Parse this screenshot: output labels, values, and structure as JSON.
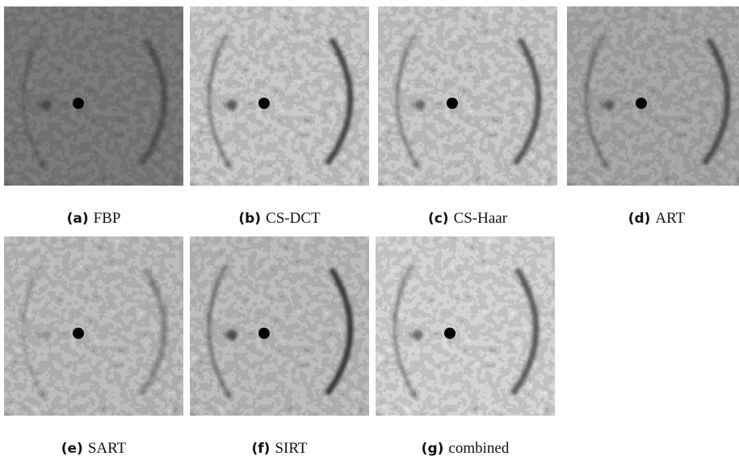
{
  "subfigures": [
    {
      "label": "(a)",
      "caption": "FBP"
    },
    {
      "label": "(b)",
      "caption": "CS-DCT"
    },
    {
      "label": "(c)",
      "caption": "CS-Haar"
    },
    {
      "label": "(d)",
      "caption": "ART"
    },
    {
      "label": "(e)",
      "caption": "SART"
    },
    {
      "label": "(f)",
      "caption": "SIRT"
    },
    {
      "label": "(g)",
      "caption": "combined"
    }
  ]
}
